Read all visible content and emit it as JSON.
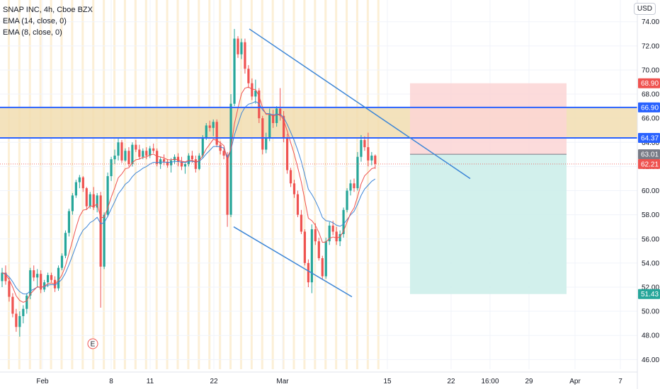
{
  "legend": {
    "title": "SNAP INC, 4h, Cboe BZX",
    "ema14": "EMA (14, close, 0)",
    "ema8": "EMA (8, close, 0)"
  },
  "currency_button": "USD",
  "earnings_marker": "E",
  "colors": {
    "up": "#26a69a",
    "down": "#ef5350",
    "ema_fast": "#ef5350",
    "ema_slow": "#3d86d6",
    "hline": "#2962ff",
    "trend": "#3d86d6",
    "zone_fill": "#f1ddb0",
    "stop_fill": "#fbd5d5",
    "target_fill": "#cdeeea"
  },
  "chart_data": {
    "type": "candlestick",
    "title": "SNAP INC, 4h, Cboe BZX",
    "ylim": [
      45.2,
      75.8
    ],
    "y_ticks": [
      "74.00",
      "72.00",
      "70.00",
      "68.00",
      "66.00",
      "64.00",
      "62.00",
      "60.00",
      "58.00",
      "56.00",
      "54.00",
      "52.00",
      "50.00",
      "48.00",
      "46.00"
    ],
    "x_ticks": [
      "Feb",
      "8",
      "11",
      "22",
      "Mar",
      "15",
      "22",
      "16:00",
      "29",
      "Apr",
      "7"
    ],
    "price_tags": [
      {
        "label": "68.90",
        "value": 68.9,
        "color": "#ef5350"
      },
      {
        "label": "66.90",
        "value": 66.9,
        "color": "#2962ff"
      },
      {
        "label": "64.37",
        "value": 64.37,
        "color": "#2962ff"
      },
      {
        "label": "63.01",
        "value": 63.01,
        "color": "#787b86"
      },
      {
        "label": "62.21",
        "value": 62.21,
        "color": "#ef5350"
      },
      {
        "label": "51.43",
        "value": 51.43,
        "color": "#26a69a"
      }
    ],
    "horizontal_lines": [
      66.9,
      64.37
    ],
    "resistance_zone": [
      64.37,
      66.9
    ],
    "current_price": 62.21,
    "position": {
      "entry": 63.01,
      "stop": 68.9,
      "target": 51.43
    },
    "trendlines": [
      {
        "from": [
          0,
          73.4
        ],
        "to": [
          0,
          61.0
        ],
        "label": "upper channel"
      },
      {
        "from": [
          0,
          57.0
        ],
        "to": [
          0,
          51.2
        ],
        "label": "lower channel"
      }
    ],
    "candles": [
      [
        52.5,
        53.6,
        52.0,
        53.2
      ],
      [
        53.2,
        53.8,
        52.2,
        52.5
      ],
      [
        52.5,
        52.8,
        50.8,
        51.2
      ],
      [
        51.2,
        51.5,
        49.5,
        49.8
      ],
      [
        49.8,
        50.2,
        48.3,
        48.7
      ],
      [
        48.7,
        50.0,
        47.9,
        49.6
      ],
      [
        49.6,
        50.5,
        49.0,
        50.2
      ],
      [
        50.2,
        51.5,
        49.8,
        51.3
      ],
      [
        51.3,
        53.6,
        51.0,
        53.4
      ],
      [
        53.4,
        53.8,
        52.5,
        52.8
      ],
      [
        52.8,
        53.5,
        52.0,
        53.1
      ],
      [
        53.1,
        53.4,
        51.5,
        51.8
      ],
      [
        51.8,
        52.6,
        51.6,
        52.4
      ],
      [
        52.4,
        53.2,
        52.0,
        53.0
      ],
      [
        53.0,
        53.2,
        52.4,
        52.6
      ],
      [
        52.6,
        52.9,
        51.6,
        51.9
      ],
      [
        51.9,
        53.8,
        51.7,
        53.6
      ],
      [
        53.6,
        54.8,
        53.4,
        54.6
      ],
      [
        54.6,
        56.7,
        54.4,
        56.5
      ],
      [
        56.5,
        58.5,
        56.2,
        58.3
      ],
      [
        58.3,
        59.8,
        58.0,
        59.6
      ],
      [
        59.6,
        60.9,
        59.4,
        60.7
      ],
      [
        60.7,
        61.3,
        60.2,
        61.1
      ],
      [
        61.1,
        61.2,
        59.9,
        60.2
      ],
      [
        60.2,
        60.3,
        58.4,
        58.7
      ],
      [
        58.7,
        59.9,
        58.5,
        59.7
      ],
      [
        59.7,
        60.3,
        58.4,
        58.6
      ],
      [
        58.6,
        59.8,
        58.2,
        59.6
      ],
      [
        59.6,
        59.9,
        50.3,
        53.7
      ],
      [
        53.7,
        58.2,
        53.5,
        58.0
      ],
      [
        58.0,
        61.5,
        57.8,
        61.2
      ],
      [
        61.2,
        62.8,
        60.8,
        62.6
      ],
      [
        62.6,
        63.4,
        62.2,
        62.9
      ],
      [
        62.9,
        64.3,
        62.5,
        64.0
      ],
      [
        64.0,
        64.2,
        62.3,
        62.5
      ],
      [
        62.5,
        63.5,
        62.4,
        63.3
      ],
      [
        63.3,
        63.6,
        62.0,
        62.2
      ],
      [
        62.2,
        64.0,
        62.0,
        63.8
      ],
      [
        63.8,
        64.2,
        63.2,
        63.4
      ],
      [
        63.4,
        63.8,
        62.6,
        62.8
      ],
      [
        62.8,
        63.5,
        62.6,
        63.3
      ],
      [
        63.3,
        63.6,
        62.6,
        62.9
      ],
      [
        62.9,
        63.7,
        62.7,
        63.5
      ],
      [
        63.5,
        63.9,
        63.1,
        63.3
      ],
      [
        63.3,
        63.5,
        62.0,
        62.2
      ],
      [
        62.2,
        62.8,
        61.8,
        62.6
      ],
      [
        62.6,
        63.0,
        62.1,
        62.4
      ],
      [
        62.4,
        62.6,
        61.9,
        62.1
      ],
      [
        62.1,
        62.7,
        61.5,
        62.5
      ],
      [
        62.5,
        63.0,
        62.2,
        62.8
      ],
      [
        62.8,
        63.1,
        62.0,
        62.4
      ],
      [
        62.4,
        62.8,
        61.7,
        62.0
      ],
      [
        62.0,
        62.3,
        61.4,
        62.2
      ],
      [
        62.2,
        63.1,
        62.0,
        62.9
      ],
      [
        62.9,
        63.3,
        62.3,
        62.6
      ],
      [
        62.6,
        62.9,
        61.5,
        61.8
      ],
      [
        61.8,
        63.1,
        61.7,
        62.9
      ],
      [
        62.9,
        64.6,
        62.7,
        64.4
      ],
      [
        64.4,
        65.6,
        64.2,
        65.4
      ],
      [
        65.4,
        65.8,
        64.9,
        65.2
      ],
      [
        65.2,
        65.9,
        64.5,
        65.7
      ],
      [
        65.7,
        65.9,
        63.6,
        63.8
      ],
      [
        63.8,
        64.1,
        63.0,
        63.3
      ],
      [
        63.3,
        63.6,
        62.6,
        62.9
      ],
      [
        62.9,
        63.2,
        57.0,
        58.0
      ],
      [
        58.0,
        68.0,
        57.8,
        67.2
      ],
      [
        67.2,
        73.4,
        67.0,
        72.6
      ],
      [
        72.6,
        72.8,
        71.0,
        71.3
      ],
      [
        71.3,
        72.6,
        70.9,
        72.3
      ],
      [
        72.3,
        72.6,
        69.7,
        70.1
      ],
      [
        70.1,
        70.4,
        68.5,
        68.9
      ],
      [
        68.9,
        69.3,
        67.5,
        67.8
      ],
      [
        67.8,
        69.2,
        67.2,
        68.3
      ],
      [
        68.3,
        68.5,
        65.6,
        66.0
      ],
      [
        66.0,
        66.2,
        63.0,
        63.4
      ],
      [
        63.4,
        64.8,
        63.1,
        64.4
      ],
      [
        64.4,
        66.8,
        64.1,
        66.3
      ],
      [
        66.3,
        66.7,
        65.2,
        65.6
      ],
      [
        65.6,
        67.0,
        65.3,
        66.8
      ],
      [
        66.8,
        68.5,
        65.8,
        66.2
      ],
      [
        66.2,
        66.6,
        64.0,
        64.4
      ],
      [
        64.4,
        64.7,
        61.4,
        61.7
      ],
      [
        61.7,
        61.9,
        60.3,
        60.6
      ],
      [
        60.6,
        60.9,
        59.4,
        59.7
      ],
      [
        59.7,
        60.0,
        57.8,
        58.0
      ],
      [
        58.0,
        58.4,
        56.4,
        56.6
      ],
      [
        56.6,
        56.8,
        53.8,
        54.0
      ],
      [
        54.0,
        54.3,
        52.0,
        52.4
      ],
      [
        52.4,
        57.2,
        51.5,
        56.8
      ],
      [
        56.8,
        57.3,
        55.5,
        55.8
      ],
      [
        55.8,
        56.1,
        54.2,
        54.4
      ],
      [
        54.4,
        54.6,
        52.6,
        52.9
      ],
      [
        52.9,
        56.1,
        52.7,
        55.8
      ],
      [
        55.8,
        57.4,
        55.5,
        57.1
      ],
      [
        57.1,
        57.5,
        56.3,
        56.6
      ],
      [
        56.6,
        57.0,
        55.5,
        55.8
      ],
      [
        55.8,
        56.7,
        55.4,
        56.4
      ],
      [
        56.4,
        58.6,
        56.1,
        58.4
      ],
      [
        58.4,
        60.2,
        58.2,
        60.0
      ],
      [
        60.0,
        60.9,
        59.6,
        60.6
      ],
      [
        60.6,
        61.0,
        59.9,
        60.2
      ],
      [
        60.2,
        63.2,
        60.0,
        62.8
      ],
      [
        62.8,
        64.6,
        62.4,
        64.2
      ],
      [
        64.2,
        64.5,
        63.3,
        63.6
      ],
      [
        63.6,
        64.8,
        62.0,
        62.5
      ],
      [
        62.5,
        63.2,
        62.1,
        62.9
      ],
      [
        62.9,
        63.0,
        61.8,
        62.21
      ]
    ]
  }
}
